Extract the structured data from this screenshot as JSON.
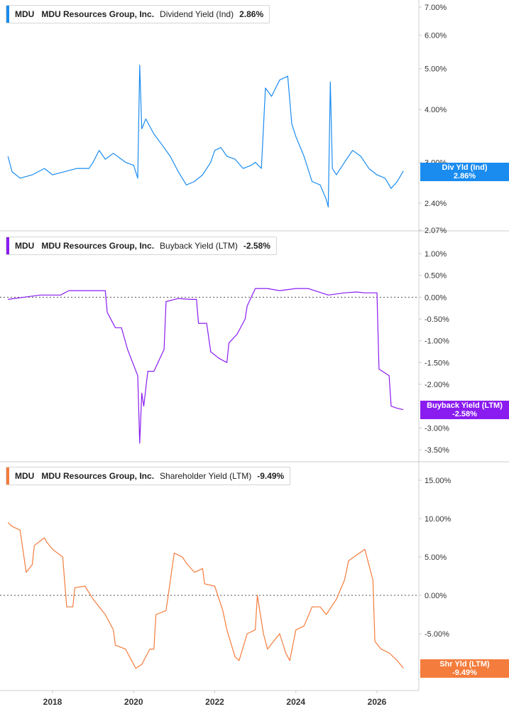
{
  "x_axis": {
    "ticks": [
      "2018",
      "2020",
      "2022",
      "2024",
      "2026"
    ]
  },
  "panels": [
    {
      "ticker": "MDU",
      "company": "MDU Resources Group, Inc.",
      "metric": "Dividend Yield (Ind)",
      "value": "2.86%",
      "color": "#1a8cf0",
      "tag_label": "Div Yld (Ind)",
      "tag_value": "2.86%",
      "y_labels": [
        "7.00%",
        "6.00%",
        "5.00%",
        "4.00%",
        "3.00%",
        "2.40%",
        "2.07%"
      ]
    },
    {
      "ticker": "MDU",
      "company": "MDU Resources Group, Inc.",
      "metric": "Buyback Yield (LTM)",
      "value": "-2.58%",
      "color": "#8a1cf0",
      "tag_label": "Buyback Yield (LTM)",
      "tag_value": "-2.58%",
      "y_labels": [
        "1.00%",
        "0.50%",
        "0.00%",
        "-0.50%",
        "-1.00%",
        "-1.50%",
        "-2.00%",
        "-3.00%",
        "-3.50%"
      ]
    },
    {
      "ticker": "MDU",
      "company": "MDU Resources Group, Inc.",
      "metric": "Shareholder Yield (LTM)",
      "value": "-9.49%",
      "color": "#f47c3c",
      "tag_label": "Shr Yld (LTM)",
      "tag_value": "-9.49%",
      "y_labels": [
        "15.00%",
        "10.00%",
        "5.00%",
        "0.00%",
        "-5.00%",
        "-10.00%"
      ]
    }
  ],
  "chart_data": [
    {
      "type": "line",
      "title": "MDU Resources Group, Inc. Dividend Yield (Ind)",
      "series": [
        {
          "name": "Dividend Yield (Ind)",
          "x": [
            2016.9,
            2017.0,
            2017.2,
            2017.5,
            2017.8,
            2018.0,
            2018.3,
            2018.6,
            2018.9,
            2019.0,
            2019.15,
            2019.3,
            2019.5,
            2019.8,
            2020.0,
            2020.1,
            2020.15,
            2020.2,
            2020.3,
            2020.5,
            2020.7,
            2020.9,
            2021.1,
            2021.3,
            2021.5,
            2021.7,
            2021.9,
            2022.0,
            2022.15,
            2022.3,
            2022.5,
            2022.7,
            2022.9,
            2023.0,
            2023.15,
            2023.25,
            2023.4,
            2023.6,
            2023.8,
            2023.9,
            2024.0,
            2024.2,
            2024.4,
            2024.6,
            2024.75,
            2024.8,
            2024.85,
            2024.9,
            2025.0,
            2025.2,
            2025.4,
            2025.6,
            2025.8,
            2026.0,
            2026.2,
            2026.35,
            2026.5,
            2026.65
          ],
          "y": [
            3.1,
            2.85,
            2.75,
            2.8,
            2.9,
            2.8,
            2.85,
            2.9,
            2.9,
            3.0,
            3.2,
            3.05,
            3.15,
            3.0,
            2.95,
            2.75,
            5.1,
            3.6,
            3.8,
            3.5,
            3.3,
            3.1,
            2.85,
            2.65,
            2.7,
            2.8,
            3.0,
            3.2,
            3.25,
            3.1,
            3.05,
            2.9,
            2.95,
            3.0,
            2.9,
            4.5,
            4.3,
            4.7,
            4.8,
            3.7,
            3.45,
            3.1,
            2.7,
            2.65,
            2.45,
            2.35,
            4.65,
            2.9,
            2.8,
            3.0,
            3.2,
            3.1,
            2.9,
            2.8,
            2.75,
            2.6,
            2.7,
            2.86
          ]
        }
      ],
      "ylim": [
        2.07,
        7.0
      ],
      "scale": "log",
      "grid": false
    },
    {
      "type": "line",
      "title": "MDU Resources Group, Inc. Buyback Yield (LTM)",
      "series": [
        {
          "name": "Buyback Yield (LTM)",
          "x": [
            2016.9,
            2017.3,
            2017.7,
            2018.2,
            2018.4,
            2018.8,
            2019.3,
            2019.35,
            2019.55,
            2019.7,
            2019.85,
            2020.1,
            2020.12,
            2020.15,
            2020.2,
            2020.25,
            2020.35,
            2020.5,
            2020.75,
            2020.8,
            2021.1,
            2021.4,
            2021.55,
            2021.6,
            2021.8,
            2021.9,
            2022.1,
            2022.3,
            2022.35,
            2022.55,
            2022.75,
            2022.8,
            2023.0,
            2023.2,
            2023.3,
            2023.6,
            2024.0,
            2024.3,
            2024.8,
            2025.2,
            2025.5,
            2025.7,
            2026.0,
            2026.05,
            2026.3,
            2026.35,
            2026.5,
            2026.65
          ],
          "y": [
            -0.05,
            0.0,
            0.05,
            0.05,
            0.15,
            0.15,
            0.15,
            -0.35,
            -0.7,
            -0.7,
            -1.2,
            -1.8,
            -2.4,
            -3.35,
            -2.2,
            -2.5,
            -1.7,
            -1.7,
            -1.2,
            -0.1,
            -0.03,
            -0.05,
            -0.05,
            -0.6,
            -0.6,
            -1.25,
            -1.4,
            -1.5,
            -1.05,
            -0.85,
            -0.5,
            -0.2,
            0.2,
            0.2,
            0.2,
            0.15,
            0.2,
            0.2,
            0.05,
            0.1,
            0.12,
            0.1,
            0.1,
            -1.65,
            -1.8,
            -2.5,
            -2.55,
            -2.58
          ]
        }
      ],
      "ylim": [
        -3.5,
        1.0
      ],
      "grid": false
    },
    {
      "type": "line",
      "title": "MDU Resources Group, Inc. Shareholder Yield (LTM)",
      "series": [
        {
          "name": "Shareholder Yield (LTM)",
          "x": [
            2016.9,
            2017.0,
            2017.2,
            2017.35,
            2017.5,
            2017.55,
            2017.8,
            2017.85,
            2018.0,
            2018.25,
            2018.35,
            2018.5,
            2018.55,
            2018.8,
            2019.0,
            2019.3,
            2019.5,
            2019.55,
            2019.8,
            2020.0,
            2020.05,
            2020.2,
            2020.4,
            2020.5,
            2020.55,
            2020.8,
            2021.0,
            2021.2,
            2021.3,
            2021.5,
            2021.7,
            2021.75,
            2022.0,
            2022.2,
            2022.3,
            2022.5,
            2022.6,
            2022.8,
            2023.0,
            2023.05,
            2023.2,
            2023.3,
            2023.6,
            2023.75,
            2023.85,
            2024.0,
            2024.2,
            2024.4,
            2024.6,
            2024.75,
            2025.0,
            2025.2,
            2025.3,
            2025.7,
            2025.9,
            2025.95,
            2026.1,
            2026.3,
            2026.5,
            2026.65
          ],
          "y": [
            9.5,
            9.0,
            8.5,
            3.0,
            4.0,
            6.5,
            7.5,
            7.0,
            6.0,
            5.0,
            -1.5,
            -1.5,
            1.0,
            1.2,
            -0.5,
            -2.5,
            -4.5,
            -6.5,
            -7.0,
            -9.0,
            -9.5,
            -9.0,
            -7.0,
            -7.0,
            -2.5,
            -2.0,
            5.5,
            5.0,
            4.2,
            3.0,
            3.5,
            1.5,
            1.2,
            -2.0,
            -4.5,
            -8.0,
            -8.5,
            -5.0,
            -4.5,
            0.0,
            -5.0,
            -7.0,
            -5.0,
            -7.5,
            -8.5,
            -4.5,
            -4.0,
            -1.5,
            -1.5,
            -2.5,
            -0.5,
            2.0,
            4.5,
            6.0,
            2.0,
            -6.0,
            -7.0,
            -7.5,
            -8.5,
            -9.49
          ]
        }
      ],
      "ylim": [
        -10.0,
        15.0
      ],
      "grid": false
    }
  ]
}
